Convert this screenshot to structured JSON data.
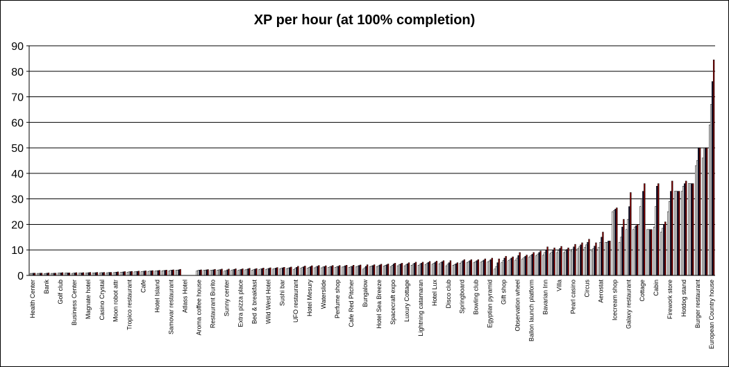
{
  "chart_data": {
    "type": "bar",
    "title": "XP per hour (at 100% completion)",
    "xlabel": "",
    "ylabel": "",
    "ylim": [
      0,
      90
    ],
    "yticks": [
      0,
      10,
      20,
      30,
      40,
      50,
      60,
      70,
      80,
      90
    ],
    "grid": true,
    "legend": "none",
    "bars_per_category": 4,
    "bar_colors": [
      "#ffffff",
      "#ffffff",
      "#1a1a3a",
      "#8b0000"
    ],
    "categories": [
      {
        "label": "Health Center",
        "values": [
          0.8,
          0.8,
          0.9,
          0.9
        ]
      },
      {
        "label": "",
        "values": [
          0.8,
          0.8,
          0.9,
          0.9
        ]
      },
      {
        "label": "Bank",
        "values": [
          0.7,
          0.8,
          0.9,
          1.0
        ]
      },
      {
        "label": "",
        "values": [
          0.8,
          0.8,
          0.9,
          0.9
        ]
      },
      {
        "label": "Golf club",
        "values": [
          0.9,
          1.0,
          1.0,
          1.1
        ]
      },
      {
        "label": "",
        "values": [
          0.9,
          1.0,
          1.0,
          1.0
        ]
      },
      {
        "label": "Business Center",
        "values": [
          0.8,
          0.9,
          1.0,
          1.1
        ]
      },
      {
        "label": "",
        "values": [
          0.9,
          1.0,
          1.0,
          1.1
        ]
      },
      {
        "label": "Magnate hotel",
        "values": [
          0.9,
          1.0,
          1.1,
          1.2
        ]
      },
      {
        "label": "",
        "values": [
          1.0,
          1.0,
          1.1,
          1.2
        ]
      },
      {
        "label": "Casino Crystal",
        "values": [
          1.0,
          1.1,
          1.1,
          1.2
        ]
      },
      {
        "label": "",
        "values": [
          1.0,
          1.1,
          1.2,
          1.2
        ]
      },
      {
        "label": "Moon robot attr",
        "values": [
          1.1,
          1.2,
          1.3,
          1.4
        ]
      },
      {
        "label": "",
        "values": [
          1.2,
          1.3,
          1.4,
          1.5
        ]
      },
      {
        "label": "Tropico restaurant",
        "values": [
          1.3,
          1.4,
          1.5,
          1.6
        ]
      },
      {
        "label": "",
        "values": [
          1.4,
          1.5,
          1.6,
          1.7
        ]
      },
      {
        "label": "Cafe",
        "values": [
          1.5,
          1.6,
          1.7,
          1.8
        ]
      },
      {
        "label": "",
        "values": [
          1.6,
          1.7,
          1.8,
          1.9
        ]
      },
      {
        "label": "Hotel Island",
        "values": [
          1.7,
          1.8,
          1.9,
          2.0
        ]
      },
      {
        "label": "",
        "values": [
          1.8,
          1.9,
          2.0,
          2.1
        ]
      },
      {
        "label": "Samovar restaurant",
        "values": [
          1.8,
          2.0,
          2.1,
          2.2
        ]
      },
      {
        "label": "",
        "values": [
          2.0,
          2.1,
          2.2,
          2.4
        ]
      },
      {
        "label": "Atlass Hotel",
        "values": [
          0,
          0,
          0,
          0
        ]
      },
      {
        "label": "",
        "values": [
          0,
          0,
          0,
          0
        ]
      },
      {
        "label": "Aroma coffee house",
        "values": [
          1.8,
          2.0,
          2.1,
          2.2
        ]
      },
      {
        "label": "",
        "values": [
          2.0,
          2.1,
          2.2,
          2.3
        ]
      },
      {
        "label": "Restaurant Burito",
        "values": [
          2.0,
          2.1,
          2.2,
          2.4
        ]
      },
      {
        "label": "",
        "values": [
          2.1,
          2.2,
          2.3,
          2.5
        ]
      },
      {
        "label": "Sunny center",
        "values": [
          1.7,
          1.9,
          2.2,
          2.5
        ]
      },
      {
        "label": "",
        "values": [
          2.0,
          2.2,
          2.4,
          2.6
        ]
      },
      {
        "label": "Extra pizza place",
        "values": [
          2.0,
          2.2,
          2.4,
          2.6
        ]
      },
      {
        "label": "",
        "values": [
          2.2,
          2.4,
          2.6,
          2.8
        ]
      },
      {
        "label": "Bed & breakfast",
        "values": [
          2.1,
          2.3,
          2.5,
          2.7
        ]
      },
      {
        "label": "",
        "values": [
          2.3,
          2.5,
          2.7,
          2.9
        ]
      },
      {
        "label": "Wild West Hotel",
        "values": [
          2.4,
          2.6,
          2.8,
          3.0
        ]
      },
      {
        "label": "",
        "values": [
          2.5,
          2.7,
          2.9,
          3.1
        ]
      },
      {
        "label": "Sushi bar",
        "values": [
          2.6,
          2.8,
          3.0,
          3.2
        ]
      },
      {
        "label": "",
        "values": [
          2.7,
          2.9,
          3.1,
          3.3
        ]
      },
      {
        "label": "UFO restaurant",
        "values": [
          2.4,
          2.8,
          3.2,
          3.6
        ]
      },
      {
        "label": "",
        "values": [
          2.8,
          3.1,
          3.4,
          3.7
        ]
      },
      {
        "label": "Hotel Mesury",
        "values": [
          2.9,
          3.2,
          3.5,
          3.8
        ]
      },
      {
        "label": "",
        "values": [
          3.0,
          3.3,
          3.6,
          3.9
        ]
      },
      {
        "label": "Waterslide",
        "values": [
          3.0,
          3.3,
          3.5,
          3.8
        ]
      },
      {
        "label": "",
        "values": [
          3.2,
          3.4,
          3.6,
          3.9
        ]
      },
      {
        "label": "Perfume shop",
        "values": [
          3.2,
          3.4,
          3.6,
          3.9
        ]
      },
      {
        "label": "",
        "values": [
          3.3,
          3.5,
          3.8,
          4.0
        ]
      },
      {
        "label": "Cafe Red Pitcher",
        "values": [
          3.2,
          3.4,
          3.6,
          4.0
        ]
      },
      {
        "label": "",
        "values": [
          3.4,
          3.6,
          3.9,
          4.1
        ]
      },
      {
        "label": "Bungalow",
        "values": [
          2.5,
          3.0,
          3.6,
          4.2
        ]
      },
      {
        "label": "",
        "values": [
          3.5,
          3.7,
          3.9,
          4.2
        ]
      },
      {
        "label": "Hotel Sea Breeze",
        "values": [
          3.5,
          3.8,
          4.1,
          4.4
        ]
      },
      {
        "label": "",
        "values": [
          3.7,
          4.0,
          4.2,
          4.5
        ]
      },
      {
        "label": "Spacecraft expo",
        "values": [
          3.5,
          4.0,
          4.5,
          4.8
        ]
      },
      {
        "label": "",
        "values": [
          3.8,
          4.2,
          4.5,
          4.8
        ]
      },
      {
        "label": "Luxury Cottage",
        "values": [
          3.8,
          4.2,
          4.6,
          5.0
        ]
      },
      {
        "label": "",
        "values": [
          4.0,
          4.4,
          4.8,
          5.2
        ]
      },
      {
        "label": "Lightning catamaran",
        "values": [
          4.0,
          4.4,
          4.8,
          5.2
        ]
      },
      {
        "label": "",
        "values": [
          4.3,
          4.7,
          5.1,
          5.5
        ]
      },
      {
        "label": "Hotel Lux",
        "values": [
          4.4,
          4.8,
          5.2,
          5.6
        ]
      },
      {
        "label": "",
        "values": [
          4.6,
          5.0,
          5.4,
          5.8
        ]
      },
      {
        "label": "Disco club",
        "values": [
          3.8,
          4.4,
          5.0,
          5.8
        ]
      },
      {
        "label": "",
        "values": [
          4.0,
          4.3,
          4.6,
          5.0
        ]
      },
      {
        "label": "Springboard",
        "values": [
          4.8,
          5.3,
          5.8,
          6.2
        ]
      },
      {
        "label": "",
        "values": [
          5.0,
          5.4,
          5.8,
          6.2
        ]
      },
      {
        "label": "Bowling club",
        "values": [
          5.0,
          5.4,
          5.8,
          6.2
        ]
      },
      {
        "label": "",
        "values": [
          5.2,
          5.6,
          6.0,
          6.5
        ]
      },
      {
        "label": "Egyptian pyramid",
        "values": [
          5.3,
          5.7,
          6.2,
          6.8
        ]
      },
      {
        "label": "",
        "values": [
          2.5,
          3.5,
          5.0,
          6.5
        ]
      },
      {
        "label": "Gift shop",
        "values": [
          5.0,
          5.8,
          6.8,
          7.5
        ]
      },
      {
        "label": "",
        "values": [
          5.8,
          6.3,
          6.8,
          7.3
        ]
      },
      {
        "label": "Observation wheel",
        "values": [
          6.0,
          6.8,
          7.8,
          9.0
        ]
      },
      {
        "label": "",
        "values": [
          6.5,
          7.0,
          7.5,
          8.0
        ]
      },
      {
        "label": "Ballon launch platform",
        "values": [
          7.3,
          7.8,
          8.3,
          9.0
        ]
      },
      {
        "label": "",
        "values": [
          7.8,
          8.4,
          9.0,
          9.6
        ]
      },
      {
        "label": "Bavarian Inn",
        "values": [
          8.0,
          9.0,
          10.0,
          11.2
        ]
      },
      {
        "label": "",
        "values": [
          8.5,
          9.2,
          10.0,
          10.8
        ]
      },
      {
        "label": "Villa",
        "values": [
          9.0,
          9.8,
          10.6,
          11.4
        ]
      },
      {
        "label": "",
        "values": [
          9.0,
          9.6,
          10.2,
          10.8
        ]
      },
      {
        "label": "Pearl casino",
        "values": [
          9.5,
          10.3,
          11.2,
          12.2
        ]
      },
      {
        "label": "",
        "values": [
          10.5,
          11.2,
          12.0,
          12.8
        ]
      },
      {
        "label": "Circus",
        "values": [
          11.0,
          12.0,
          13.0,
          14.2
        ]
      },
      {
        "label": "",
        "values": [
          9.5,
          10.5,
          11.5,
          12.8
        ]
      },
      {
        "label": "Aerostat",
        "values": [
          11.0,
          13.0,
          15.0,
          17.0
        ]
      },
      {
        "label": "",
        "values": [
          13.0,
          13.0,
          13.5,
          13.5
        ]
      },
      {
        "label": "Icecream shop",
        "values": [
          25.0,
          25.5,
          26.0,
          26.5
        ]
      },
      {
        "label": "",
        "values": [
          13.0,
          15.0,
          19.0,
          22.0
        ]
      },
      {
        "label": "Galaxy restaurant",
        "values": [
          18.0,
          22.0,
          27.0,
          32.5
        ]
      },
      {
        "label": "",
        "values": [
          18.0,
          19.0,
          19.5,
          20.0
        ]
      },
      {
        "label": "Cottage",
        "values": [
          27.0,
          30.0,
          33.0,
          36.0
        ]
      },
      {
        "label": "",
        "values": [
          18.0,
          18.0,
          18.0,
          18.0
        ]
      },
      {
        "label": "Cabin",
        "values": [
          19.0,
          27.0,
          35.0,
          36.0
        ]
      },
      {
        "label": "",
        "values": [
          17.0,
          18.5,
          20.0,
          21.0
        ]
      },
      {
        "label": "Firework store",
        "values": [
          25.0,
          29.0,
          33.0,
          37.0
        ]
      },
      {
        "label": "",
        "values": [
          33.0,
          33.0,
          33.0,
          33.0
        ]
      },
      {
        "label": "Hotdog stand",
        "values": [
          33.0,
          35.0,
          36.0,
          37.0
        ]
      },
      {
        "label": "",
        "values": [
          36.0,
          36.0,
          36.0,
          36.0
        ]
      },
      {
        "label": "Burger restaurant",
        "values": [
          43.0,
          45.0,
          50.0,
          50.0
        ]
      },
      {
        "label": "",
        "values": [
          46.0,
          50.0,
          50.0,
          50.0
        ]
      },
      {
        "label": "European Country house",
        "values": [
          59.0,
          67.0,
          76.0,
          84.5
        ]
      }
    ]
  }
}
